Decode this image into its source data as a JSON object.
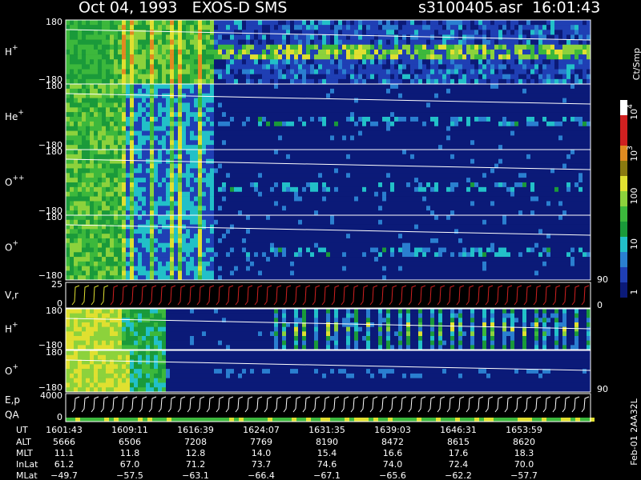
{
  "header": {
    "title": "Oct 04, 1993   EXOS-D SMS",
    "file": "s3100405.asr  16:01:43"
  },
  "panels": [
    {
      "label": "H",
      "sup": "+",
      "top": "180",
      "bottom": "−180"
    },
    {
      "label": "He",
      "sup": "+",
      "top": "180",
      "bottom": "−180"
    },
    {
      "label": "O",
      "sup": "++",
      "top": "180",
      "bottom": "−180"
    },
    {
      "label": "O",
      "sup": "+",
      "top": "180",
      "bottom": "−180"
    },
    {
      "label": "V,r",
      "top": "25",
      "bottom": "0",
      "right_top": "90",
      "right_bottom": "0"
    },
    {
      "label": "H",
      "sup": "+",
      "top": "180",
      "bottom": "−180"
    },
    {
      "label": "O",
      "sup": "+",
      "top": "180",
      "bottom": "−180",
      "right_bottom": "90"
    },
    {
      "label": "E,p",
      "label2": "QA",
      "top": "4000",
      "bottom": "0"
    }
  ],
  "colorbar": {
    "unit": "Ct/Smp",
    "ticks": [
      {
        "base": "10",
        "sup": "4"
      },
      {
        "base": "10",
        "sup": "3"
      },
      {
        "base": "100"
      },
      {
        "base": "10"
      },
      {
        "base": "1"
      }
    ]
  },
  "table": {
    "rows": [
      {
        "label": "UT",
        "cells": [
          "1601:43",
          "1609:11",
          "1616:39",
          "1624:07",
          "1631:35",
          "1639:03",
          "1646:31",
          "1653:59"
        ]
      },
      {
        "label": "ALT",
        "cells": [
          "5666",
          "6506",
          "7208",
          "7769",
          "8190",
          "8472",
          "8615",
          "8620"
        ]
      },
      {
        "label": "MLT",
        "cells": [
          "11.1",
          "11.8",
          "12.8",
          "14.0",
          "15.4",
          "16.6",
          "17.6",
          "18.3"
        ]
      },
      {
        "label": "InLat",
        "cells": [
          "61.2",
          "67.0",
          "71.2",
          "73.7",
          "74.6",
          "74.0",
          "72.4",
          "70.0"
        ]
      },
      {
        "label": "MLat",
        "cells": [
          "−49.7",
          "−57.5",
          "−63.1",
          "−66.4",
          "−67.1",
          "−65.6",
          "−62.2",
          "−57.7"
        ]
      }
    ]
  },
  "footer": "Feb-01 2AA32L"
}
